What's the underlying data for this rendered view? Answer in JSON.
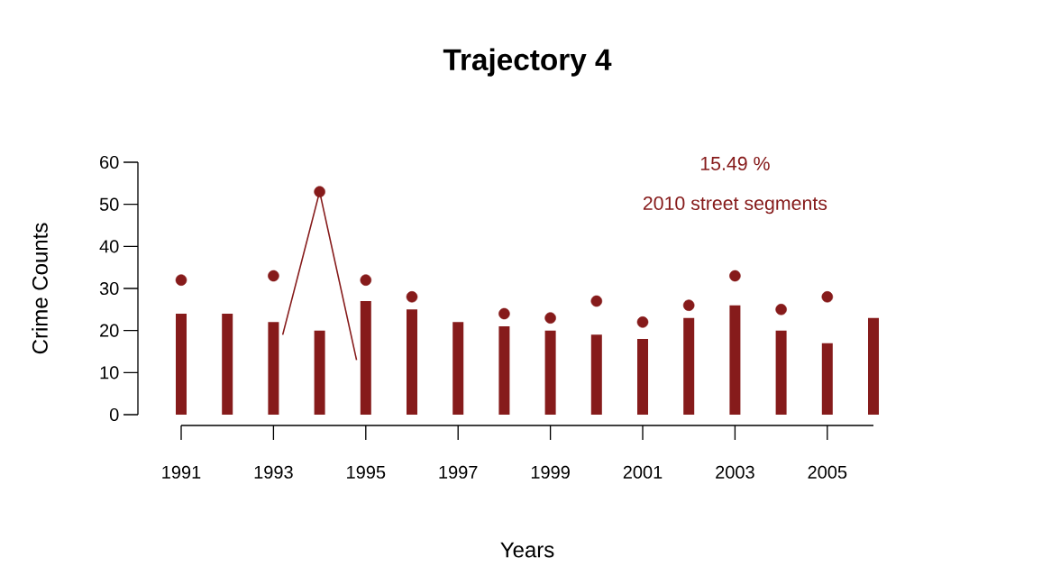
{
  "chart_data": {
    "type": "bar",
    "title": "Trajectory 4",
    "xlabel": "Years",
    "ylabel": "Crime Counts",
    "annotations": [
      "15.49 %",
      "2010 street segments"
    ],
    "x": [
      1991,
      1992,
      1993,
      1994,
      1995,
      1996,
      1997,
      1998,
      1999,
      2000,
      2001,
      2002,
      2003,
      2004,
      2005,
      2006
    ],
    "xlim": [
      1991,
      2006
    ],
    "xticks": [
      1991,
      1993,
      1995,
      1997,
      1999,
      2001,
      2003,
      2005
    ],
    "ylim": [
      0,
      60
    ],
    "yticks": [
      0,
      10,
      20,
      30,
      40,
      50,
      60
    ],
    "series": [
      {
        "color": "#861b1b",
        "values": [
          24,
          24,
          22,
          20,
          27,
          25,
          22,
          21,
          20,
          19,
          18,
          23,
          26,
          20,
          17,
          23
        ]
      },
      {
        "type": "scatter",
        "color": "#861b1b",
        "values": [
          32,
          null,
          33,
          53,
          32,
          28,
          null,
          24,
          23,
          27,
          22,
          26,
          33,
          25,
          28,
          null
        ]
      },
      {
        "type": "line",
        "color": "#861b1b",
        "x": [
          1993.2,
          1994,
          1994.8
        ],
        "values": [
          19,
          53,
          13
        ]
      }
    ]
  }
}
